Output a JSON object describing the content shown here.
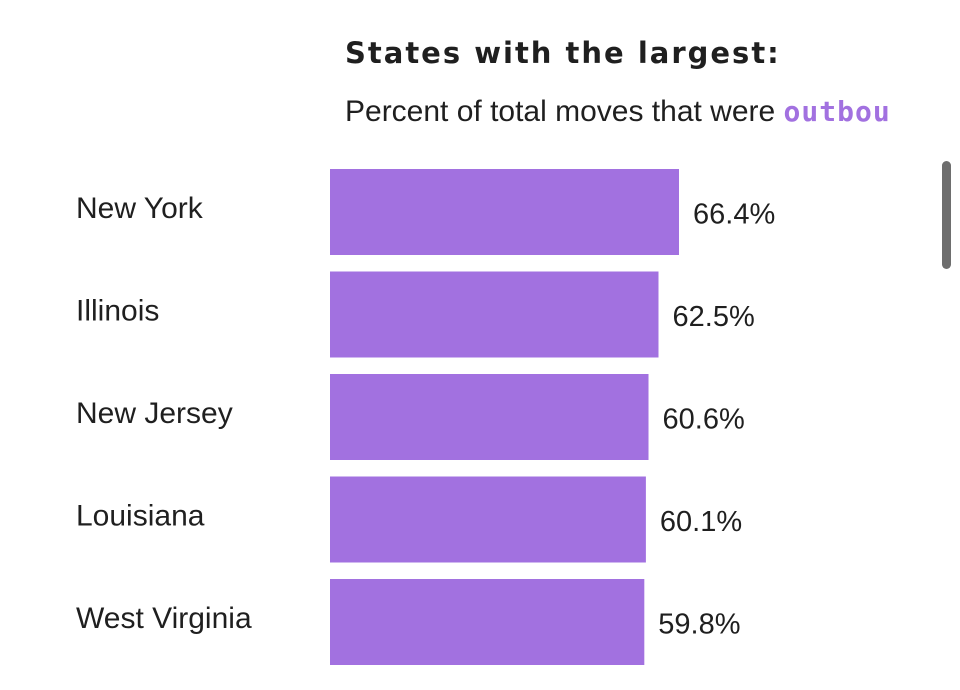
{
  "header": {
    "title": "States with the largest:",
    "subtitle_prefix": "Percent of total moves that were ",
    "subtitle_highlight": "outbou"
  },
  "colors": {
    "bar": "#a271e0",
    "highlight": "#a271e0"
  },
  "chart_data": {
    "type": "bar",
    "orientation": "horizontal",
    "title": "States with the largest:",
    "subtitle": "Percent of total moves that were outbou",
    "categories": [
      "New York",
      "Illinois",
      "New Jersey",
      "Louisiana",
      "West Virginia"
    ],
    "values": [
      66.4,
      62.5,
      60.6,
      60.1,
      59.8
    ],
    "value_labels": [
      "66.4%",
      "62.5%",
      "60.6%",
      "60.1%",
      "59.8%"
    ],
    "unit": "%",
    "xlabel": "",
    "ylabel": "",
    "grid": false,
    "legend": "none"
  }
}
